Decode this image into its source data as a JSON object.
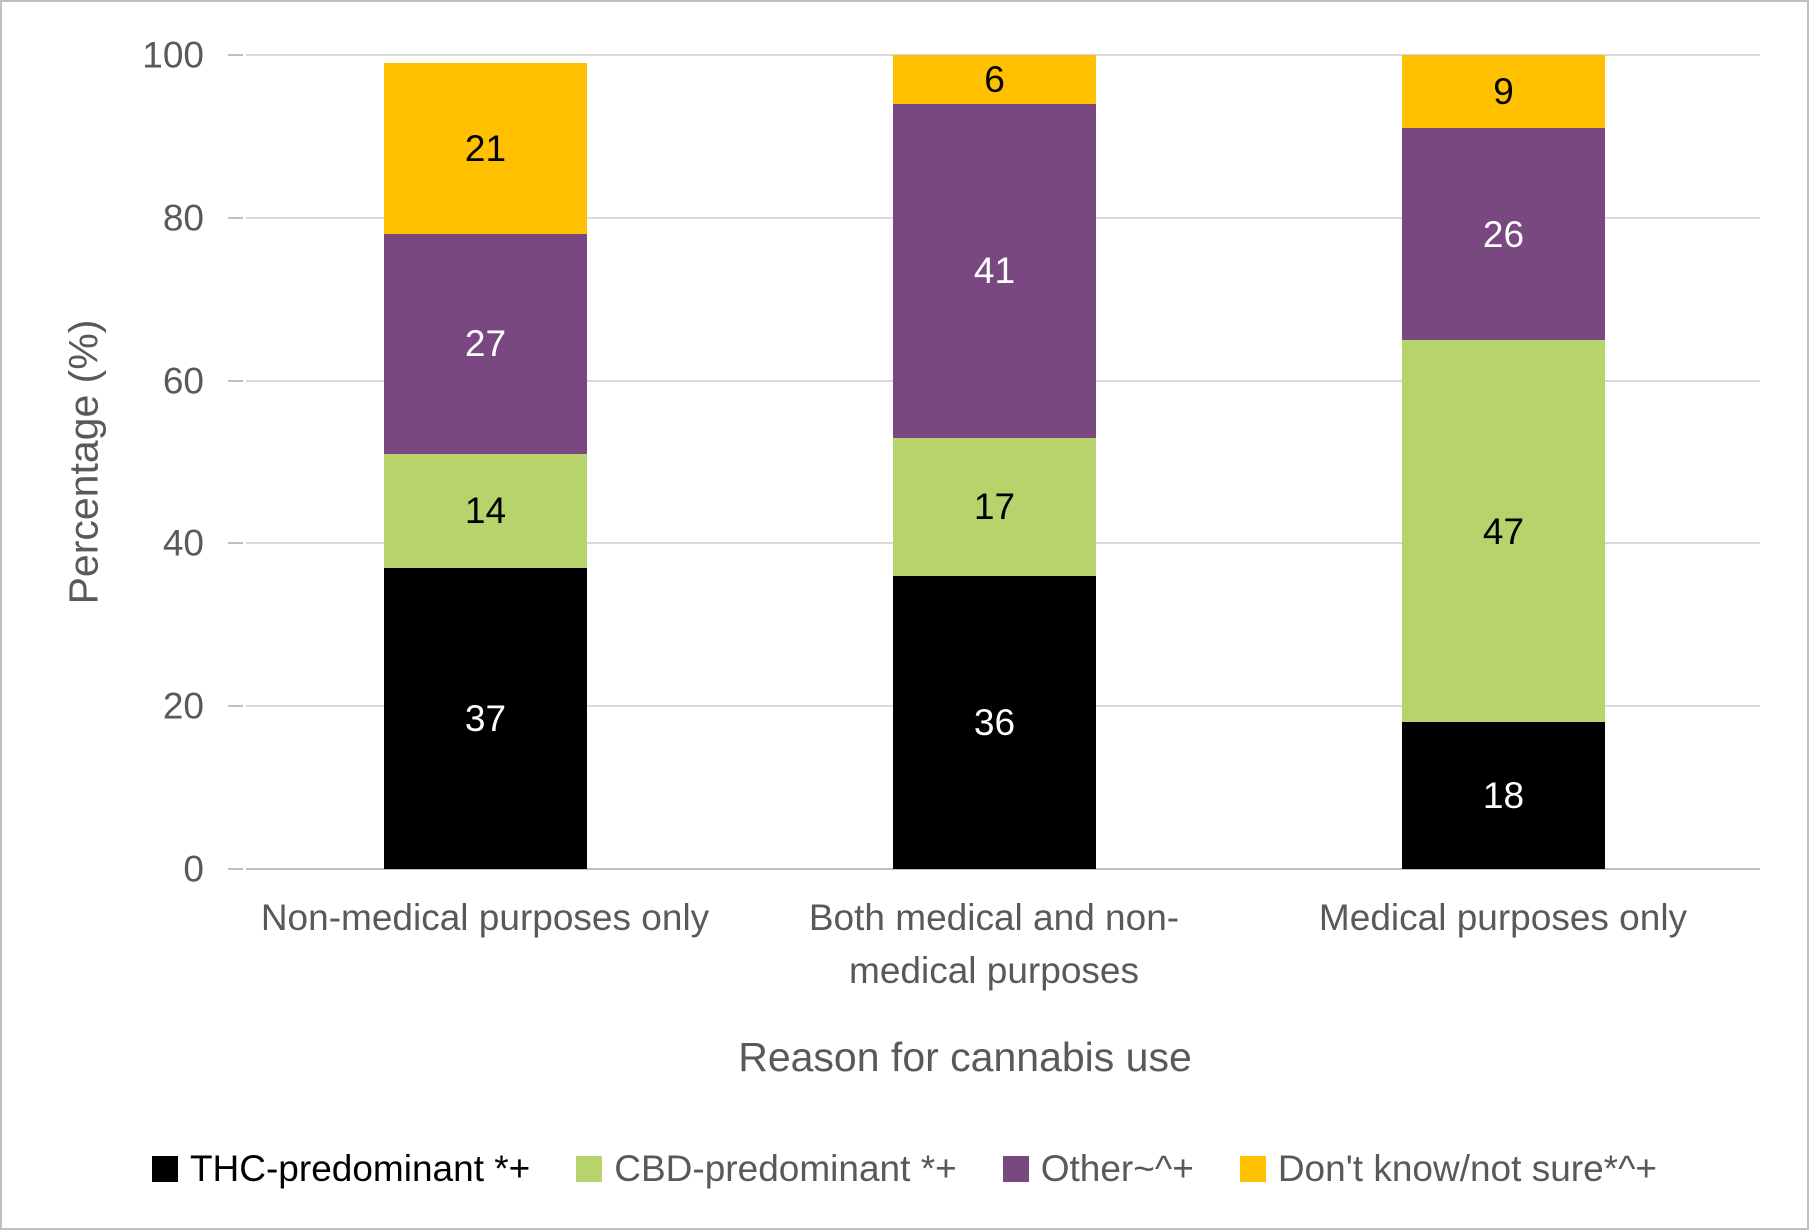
{
  "chart_data": {
    "type": "bar",
    "subtype": "stacked-column",
    "title": "",
    "xlabel": "Reason for cannabis use",
    "ylabel": "Percentage (%)",
    "ylim": [
      0,
      100
    ],
    "yticks": [
      0,
      20,
      40,
      60,
      80,
      100
    ],
    "grid": true,
    "legend_position": "bottom",
    "categories": [
      "Non-medical purposes only",
      "Both medical and non-medical purposes",
      "Medical purposes only"
    ],
    "series": [
      {
        "name": "THC-predominant *+",
        "color": "#000000",
        "label_color": "#ffffff",
        "legend_text_color": "#000000",
        "values": [
          37,
          36,
          18
        ]
      },
      {
        "name": "CBD-predominant *+",
        "color": "#b7d36c",
        "label_color": "#000000",
        "legend_text_color": "#595959",
        "values": [
          14,
          17,
          47
        ]
      },
      {
        "name": "Other~^+",
        "color": "#7a4880",
        "label_color": "#ffffff",
        "legend_text_color": "#595959",
        "values": [
          27,
          41,
          26
        ]
      },
      {
        "name": "Don't know/not sure*^+",
        "color": "#ffc000",
        "label_color": "#000000",
        "legend_text_color": "#595959",
        "values": [
          21,
          6,
          9
        ]
      }
    ],
    "colors": {
      "gridline": "#d9d9d9",
      "axis_line": "#bfbfbf",
      "axis_text": "#595959"
    }
  }
}
